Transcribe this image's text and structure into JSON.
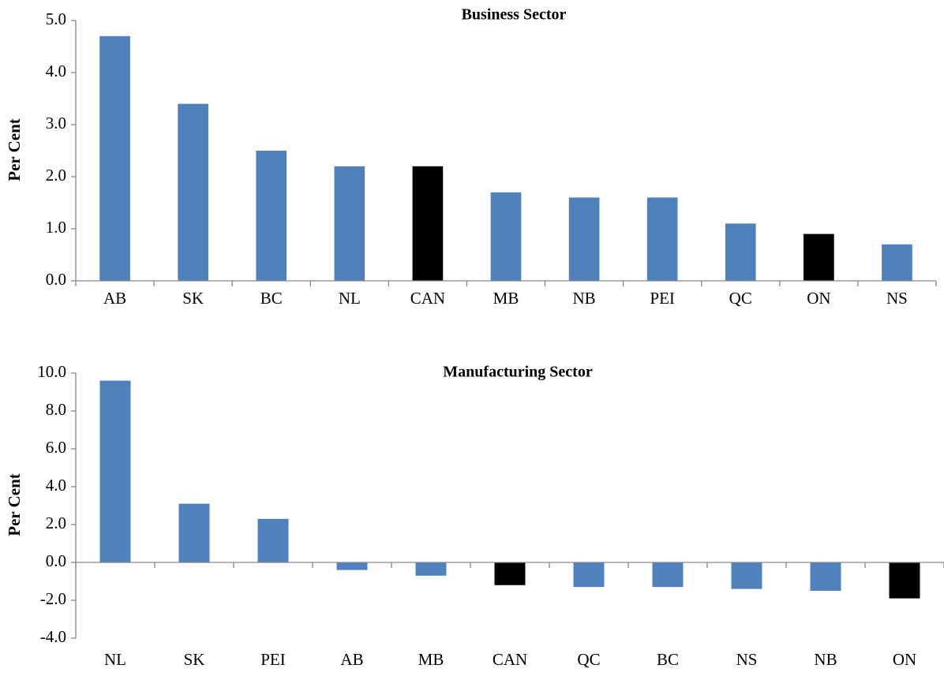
{
  "chart_data": [
    {
      "type": "bar",
      "title": "Business Sector",
      "y_label": "Per Cent",
      "categories": [
        "AB",
        "SK",
        "BC",
        "NL",
        "CAN",
        "MB",
        "NB",
        "PEI",
        "QC",
        "ON",
        "NS"
      ],
      "values": [
        4.7,
        3.4,
        2.5,
        2.2,
        2.2,
        1.7,
        1.6,
        1.6,
        1.1,
        0.9,
        0.7
      ],
      "colors": [
        "#4f81bd",
        "#4f81bd",
        "#4f81bd",
        "#4f81bd",
        "#000000",
        "#4f81bd",
        "#4f81bd",
        "#4f81bd",
        "#4f81bd",
        "#000000",
        "#4f81bd"
      ],
      "ylim": [
        0,
        5
      ],
      "yticks": [
        {
          "value": 0,
          "label": "0.0"
        },
        {
          "value": 1,
          "label": "1.0"
        },
        {
          "value": 2,
          "label": "2.0"
        },
        {
          "value": 3,
          "label": "3.0"
        },
        {
          "value": 4,
          "label": "4.0"
        },
        {
          "value": 5,
          "label": "5.0"
        }
      ],
      "grid": false
    },
    {
      "type": "bar",
      "title": "Manufacturing Sector",
      "y_label": "Per Cent",
      "categories": [
        "NL",
        "SK",
        "PEI",
        "AB",
        "MB",
        "CAN",
        "QC",
        "BC",
        "NS",
        "NB",
        "ON"
      ],
      "values": [
        9.6,
        3.1,
        2.3,
        -0.4,
        -0.7,
        -1.2,
        -1.3,
        -1.3,
        -1.4,
        -1.5,
        -1.9
      ],
      "colors": [
        "#4f81bd",
        "#4f81bd",
        "#4f81bd",
        "#4f81bd",
        "#4f81bd",
        "#000000",
        "#4f81bd",
        "#4f81bd",
        "#4f81bd",
        "#4f81bd",
        "#000000"
      ],
      "ylim": [
        -4,
        10
      ],
      "yticks": [
        {
          "value": -4,
          "label": "-4.0"
        },
        {
          "value": -2,
          "label": "-2.0"
        },
        {
          "value": 0,
          "label": "0.0"
        },
        {
          "value": 2,
          "label": "2.0"
        },
        {
          "value": 4,
          "label": "4.0"
        },
        {
          "value": 6,
          "label": "6.0"
        },
        {
          "value": 8,
          "label": "8.0"
        },
        {
          "value": 10,
          "label": "10.0"
        }
      ],
      "grid": false
    }
  ]
}
